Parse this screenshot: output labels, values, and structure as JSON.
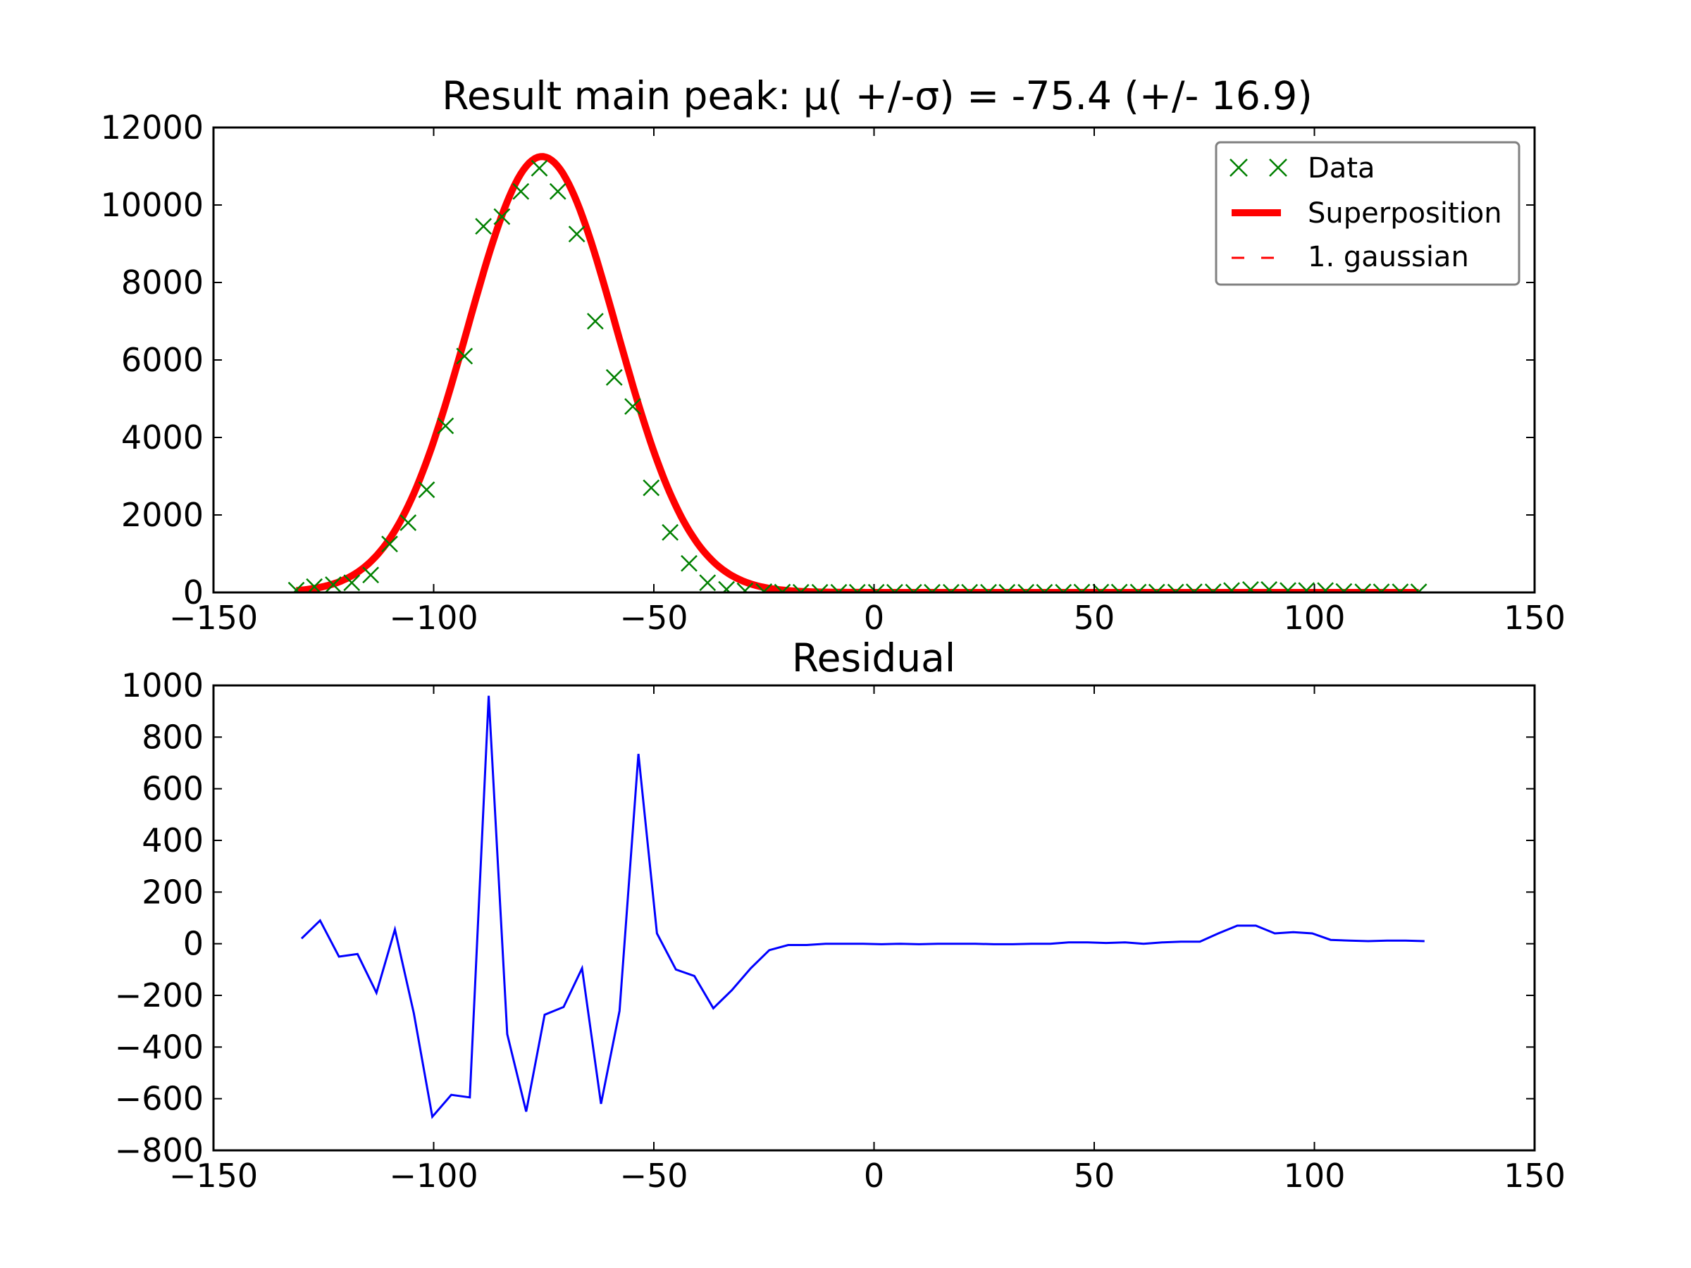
{
  "colors": {
    "data_marker": "#008000",
    "superposition": "#ff0000",
    "gaussian": "#ff0000",
    "residual": "#0000ff",
    "legend_border": "#808080"
  },
  "chart_data": [
    {
      "type": "line",
      "title": "Result main peak: μ( +/-σ) = -75.4 (+/- 16.9)",
      "xlabel": "",
      "ylabel": "",
      "xlim": [
        -150,
        150
      ],
      "ylim": [
        0,
        12000
      ],
      "xticks": [
        -150,
        -100,
        -50,
        0,
        50,
        100,
        150
      ],
      "yticks": [
        0,
        2000,
        4000,
        6000,
        8000,
        10000,
        12000
      ],
      "xtick_labels": [
        "−150",
        "−100",
        "−50",
        "0",
        "50",
        "100",
        "150"
      ],
      "ytick_labels": [
        "0",
        "2000",
        "4000",
        "6000",
        "8000",
        "10000",
        "12000"
      ],
      "grid": false,
      "legend": {
        "placement": "top-right",
        "entries": [
          "Data",
          "Superposition",
          "1. gaussian"
        ]
      },
      "fit": {
        "amplitude": 11250,
        "mu": -75.4,
        "sigma": 16.9
      },
      "series": [
        {
          "name": "Data",
          "style": "x-markers",
          "x": [
            -131.2,
            -127.1,
            -122.8,
            -118.6,
            -114.3,
            -110.0,
            -105.8,
            -101.6,
            -97.3,
            -93.0,
            -88.7,
            -84.5,
            -80.2,
            -76.0,
            -71.8,
            -67.5,
            -63.3,
            -59.0,
            -54.8,
            -50.6,
            -46.3,
            -42.0,
            -37.8,
            -33.5,
            -29.3,
            -25.0,
            -20.8,
            -16.6,
            -12.3,
            -8.0,
            -3.8,
            0.5,
            4.7,
            9.0,
            13.2,
            17.5,
            21.7,
            26.0,
            30.2,
            34.5,
            38.7,
            43.0,
            47.2,
            51.5,
            55.7,
            60.0,
            64.2,
            68.5,
            72.7,
            77.0,
            81.2,
            85.5,
            89.7,
            94.0,
            98.2,
            102.5,
            106.7,
            111.0,
            115.2,
            119.5,
            123.7
          ],
          "y": [
            60,
            150,
            200,
            250,
            450,
            1250,
            1800,
            2650,
            4300,
            6100,
            9450,
            9700,
            10350,
            10950,
            10350,
            9250,
            7000,
            5550,
            4800,
            2700,
            1550,
            750,
            250,
            80,
            40,
            20,
            10,
            5,
            5,
            5,
            5,
            5,
            5,
            5,
            5,
            5,
            5,
            5,
            5,
            5,
            5,
            5,
            10,
            10,
            10,
            10,
            10,
            10,
            15,
            15,
            50,
            75,
            75,
            50,
            50,
            50,
            25,
            15,
            15,
            15,
            15
          ]
        },
        {
          "name": "Superposition",
          "style": "thick-line"
        },
        {
          "name": "1. gaussian",
          "style": "dashed-line"
        }
      ]
    },
    {
      "type": "line",
      "title": "Residual",
      "xlabel": "",
      "ylabel": "",
      "xlim": [
        -150,
        150
      ],
      "ylim": [
        -800,
        1000
      ],
      "xticks": [
        -150,
        -100,
        -50,
        0,
        50,
        100,
        150
      ],
      "yticks": [
        -800,
        -600,
        -400,
        -200,
        0,
        200,
        400,
        600,
        800,
        1000
      ],
      "xtick_labels": [
        "−150",
        "−100",
        "−50",
        "0",
        "50",
        "100",
        "150"
      ],
      "ytick_labels": [
        "−800",
        "−600",
        "−400",
        "−200",
        "0",
        "200",
        "400",
        "600",
        "800",
        "1000"
      ],
      "grid": false,
      "series": [
        {
          "style": "line",
          "x": [
            -130.0,
            -125.8,
            -121.5,
            -117.3,
            -113.0,
            -108.8,
            -104.5,
            -100.3,
            -96.0,
            -91.8,
            -87.5,
            -83.3,
            -79.0,
            -74.8,
            -70.5,
            -66.3,
            -62.0,
            -57.8,
            -53.5,
            -49.3,
            -45.0,
            -40.8,
            -36.5,
            -32.3,
            -28.0,
            -23.8,
            -19.5,
            -15.3,
            -11.0,
            -6.8,
            -2.5,
            1.7,
            6.0,
            10.2,
            14.5,
            18.7,
            23.0,
            27.2,
            31.5,
            35.7,
            40.0,
            44.2,
            48.5,
            52.7,
            57.0,
            61.2,
            65.5,
            69.7,
            74.0,
            78.2,
            82.5,
            86.7,
            91.0,
            95.2,
            99.5,
            103.7,
            108.0,
            112.2,
            116.5,
            120.7,
            125.0
          ],
          "y": [
            20,
            90,
            -50,
            -40,
            -190,
            55,
            -270,
            -670,
            -585,
            -595,
            960,
            -350,
            -650,
            -275,
            -245,
            -95,
            -620,
            -260,
            735,
            40,
            -100,
            -125,
            -250,
            -180,
            -95,
            -25,
            -5,
            -5,
            0,
            0,
            0,
            -2,
            0,
            -2,
            0,
            0,
            0,
            -2,
            -2,
            0,
            0,
            5,
            5,
            3,
            5,
            0,
            5,
            8,
            8,
            40,
            70,
            70,
            40,
            45,
            40,
            15,
            12,
            10,
            12,
            12,
            10
          ]
        }
      ]
    }
  ]
}
